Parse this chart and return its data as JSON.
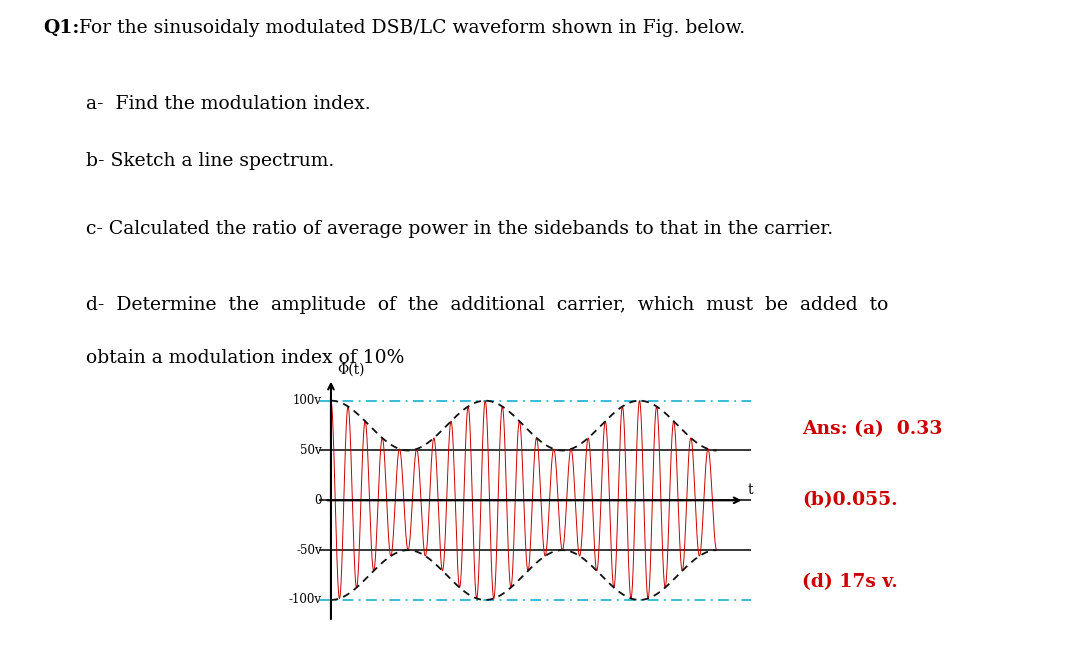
{
  "title_bold": "Q1:",
  "title_rest": " For the sinusoidaly modulated DSB/LC waveform shown in Fig. below.",
  "q1": "a-  Find the modulation index.",
  "q2": "b- Sketch a line spectrum.",
  "q3": "c- Calculated the ratio of average power in the sidebands to that in the carrier.",
  "q4a": "d-  Determine  the  amplitude  of  the  additional  carrier,  which  must  be  added  to",
  "q4b": "obtain a modulation index of 10%",
  "ylabel": "Φ(t)",
  "xlabel": "t",
  "ytick_vals": [
    100,
    50,
    0,
    -50,
    -100
  ],
  "ytick_labels": [
    "100v",
    "50v",
    "0",
    "-50v",
    "-100v"
  ],
  "carrier_amplitude": 75,
  "modulating_amplitude": 25,
  "carrier_freq_ratio": 9,
  "modulating_cycles": 2.5,
  "carrier_color": "#cc0000",
  "envelope_color": "#111111",
  "cyan_color": "#29b6d4",
  "black_color": "#000000",
  "answer_color": "#cc0000",
  "ans1": "Ans: (a)  0.33",
  "ans2": "(b)0.055.",
  "ans3": "(d) 17s v.",
  "bg_color": "#ffffff",
  "fig_width": 10.8,
  "fig_height": 6.54
}
